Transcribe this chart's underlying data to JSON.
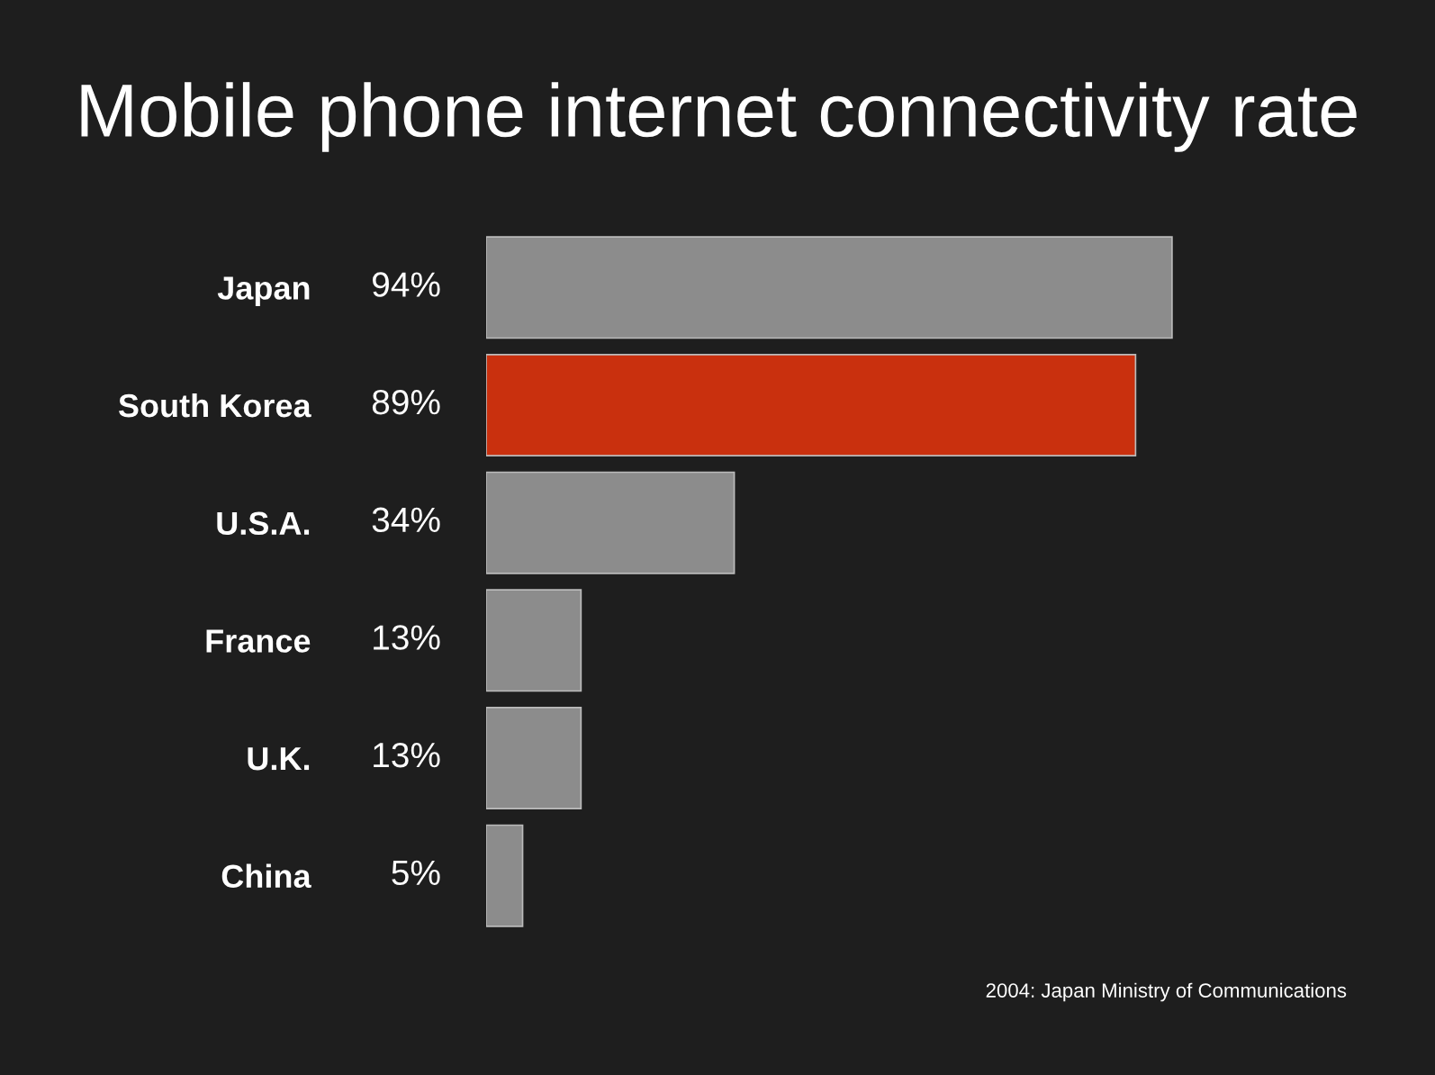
{
  "chart_data": {
    "type": "bar",
    "orientation": "horizontal",
    "title": "Mobile phone internet connectivity rate",
    "categories": [
      "Japan",
      "South Korea",
      "U.S.A.",
      "France",
      "U.K.",
      "China"
    ],
    "values": [
      94,
      89,
      34,
      13,
      13,
      5
    ],
    "value_labels": [
      "94%",
      "89%",
      "34%",
      "13%",
      "13%",
      "5%"
    ],
    "colors": [
      "#8c8c8c",
      "#c9300e",
      "#8c8c8c",
      "#8c8c8c",
      "#8c8c8c",
      "#8c8c8c"
    ],
    "annotations": [
      "2004: Japan Ministry of Communications"
    ],
    "grid": false,
    "legend": false
  }
}
